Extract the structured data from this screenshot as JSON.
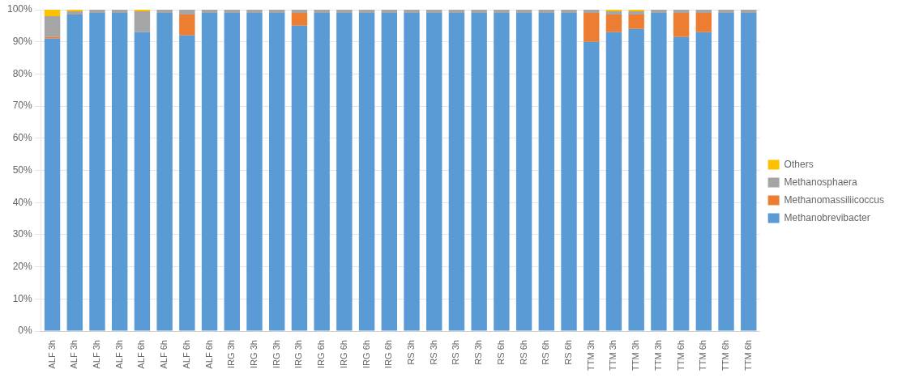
{
  "chart_data": {
    "type": "bar",
    "stacked": true,
    "grid": true,
    "legend": "right",
    "categories": [
      "ALF 3h",
      "ALF 3h",
      "ALF 3h",
      "ALF 3h",
      "ALF 6h",
      "ALF 6h",
      "ALF 6h",
      "ALF 6h",
      "IRG 3h",
      "IRG 3h",
      "IRG 3h",
      "IRG 3h",
      "IRG 6h",
      "IRG 6h",
      "IRG 6h",
      "IRG 6h",
      "RS 3h",
      "RS 3h",
      "RS 3h",
      "RS 3h",
      "RS 6h",
      "RS 6h",
      "RS 6h",
      "RS 6h",
      "TTM 3h",
      "TTM 3h",
      "TTM 3h",
      "TTM 3h",
      "TTM 6h",
      "TTM 6h",
      "TTM 6h",
      "TTM 6h"
    ],
    "series": [
      {
        "name": "Methanobrevibacter",
        "color": "#5B9BD5",
        "values": [
          91.0,
          98.5,
          99.0,
          99.0,
          93.0,
          99.0,
          92.0,
          99.0,
          99.0,
          99.0,
          99.0,
          95.0,
          99.0,
          99.0,
          99.0,
          99.0,
          99.0,
          99.0,
          99.0,
          99.0,
          99.0,
          99.0,
          99.0,
          99.0,
          90.0,
          93.0,
          94.0,
          99.0,
          91.5,
          93.0,
          99.0,
          99.0
        ]
      },
      {
        "name": "Methanomassiliicoccus",
        "color": "#ED7D31",
        "values": [
          0.5,
          0.0,
          0.0,
          0.0,
          0.0,
          0.0,
          6.5,
          0.0,
          0.0,
          0.0,
          0.0,
          4.0,
          0.0,
          0.0,
          0.0,
          0.0,
          0.0,
          0.0,
          0.0,
          0.0,
          0.0,
          0.0,
          0.0,
          0.0,
          9.0,
          5.5,
          4.5,
          0.0,
          7.5,
          6.0,
          0.0,
          0.0
        ]
      },
      {
        "name": "Methanosphaera",
        "color": "#A5A5A5",
        "values": [
          6.5,
          1.0,
          1.0,
          1.0,
          6.5,
          1.0,
          1.5,
          1.0,
          1.0,
          1.0,
          1.0,
          1.0,
          1.0,
          1.0,
          1.0,
          1.0,
          1.0,
          1.0,
          1.0,
          1.0,
          1.0,
          1.0,
          1.0,
          1.0,
          1.0,
          1.0,
          1.0,
          1.0,
          1.0,
          1.0,
          1.0,
          1.0
        ]
      },
      {
        "name": "Others",
        "color": "#FFC000",
        "values": [
          2.0,
          0.5,
          0.0,
          0.0,
          0.5,
          0.0,
          0.0,
          0.0,
          0.0,
          0.0,
          0.0,
          0.0,
          0.0,
          0.0,
          0.0,
          0.0,
          0.0,
          0.0,
          0.0,
          0.0,
          0.0,
          0.0,
          0.0,
          0.0,
          0.0,
          0.5,
          0.5,
          0.0,
          0.0,
          0.0,
          0.0,
          0.0
        ]
      }
    ],
    "ylim": [
      0,
      100
    ],
    "yticks": [
      {
        "value": 0,
        "label": "0%"
      },
      {
        "value": 10,
        "label": "10%"
      },
      {
        "value": 20,
        "label": "20%"
      },
      {
        "value": 30,
        "label": "30%"
      },
      {
        "value": 40,
        "label": "40%"
      },
      {
        "value": 50,
        "label": "50%"
      },
      {
        "value": 60,
        "label": "60%"
      },
      {
        "value": 70,
        "label": "70%"
      },
      {
        "value": 80,
        "label": "80%"
      },
      {
        "value": 90,
        "label": "90%"
      },
      {
        "value": 100,
        "label": "100%"
      }
    ]
  }
}
